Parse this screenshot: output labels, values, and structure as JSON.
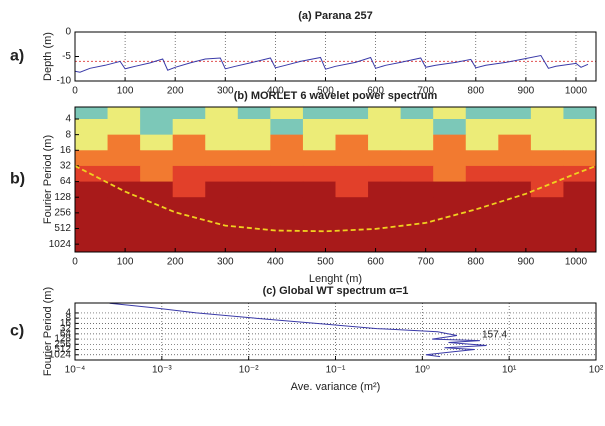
{
  "chart_data": [
    {
      "type": "line",
      "panel_label": "a)",
      "title": "(a) Parana 257",
      "ylabel": "Depth (m)",
      "xlim": [
        0,
        1040
      ],
      "xticks": [
        0,
        100,
        200,
        300,
        400,
        500,
        600,
        700,
        800,
        900,
        1000
      ],
      "ylim": [
        -10,
        0
      ],
      "yticks": [
        -10,
        -5,
        0
      ],
      "grid": "x",
      "reference_line": {
        "value": -6,
        "color": "#e05050"
      },
      "series": [
        {
          "color": "#3a3aa8",
          "x": [
            0,
            10,
            30,
            60,
            90,
            100,
            120,
            150,
            175,
            185,
            200,
            230,
            260,
            290,
            300,
            320,
            350,
            390,
            400,
            420,
            450,
            490,
            500,
            520,
            560,
            590,
            600,
            620,
            650,
            690,
            700,
            720,
            760,
            790,
            800,
            820,
            860,
            900,
            930,
            945,
            960,
            1000,
            1010,
            1024
          ],
          "values": [
            -8,
            -8.2,
            -7.4,
            -6.8,
            -6,
            -7.5,
            -7,
            -6.3,
            -5.5,
            -7.8,
            -7.2,
            -6.3,
            -5.5,
            -5.3,
            -7.5,
            -7,
            -6.3,
            -5.3,
            -7.3,
            -6.8,
            -6,
            -5.2,
            -7.6,
            -7,
            -6.2,
            -5.2,
            -7.4,
            -6.8,
            -6.2,
            -5.3,
            -7.2,
            -6.8,
            -6.2,
            -5.6,
            -7.3,
            -6.8,
            -6.2,
            -5.4,
            -4.8,
            -7.4,
            -7,
            -6.4,
            -7.2,
            -6.6
          ]
        }
      ]
    },
    {
      "type": "heatmap",
      "panel_label": "b)",
      "title": "(b) MORLET 6 wavelet power spectrum",
      "xlabel": "Lenght (m)",
      "ylabel": "Fourier Period (m)",
      "xlim": [
        0,
        1040
      ],
      "xticks": [
        0,
        100,
        200,
        300,
        400,
        500,
        600,
        700,
        800,
        900,
        1000
      ],
      "yscale": "log2",
      "ylim": [
        2.35,
        1450
      ],
      "yticks": [
        4,
        8,
        16,
        32,
        64,
        128,
        256,
        512,
        1024
      ],
      "colormap": [
        "#7cc8b8",
        "#ecec78",
        "#f27a30",
        "#e2402a",
        "#a81a1a"
      ],
      "z_period_edges": [
        2.35,
        4,
        8,
        16,
        32,
        64,
        128,
        256,
        1450
      ],
      "z": [
        [
          0,
          1,
          0,
          0,
          1,
          0,
          1,
          0,
          0,
          1,
          0,
          1,
          0,
          0,
          1,
          0
        ],
        [
          1,
          1,
          0,
          1,
          1,
          1,
          0,
          1,
          1,
          1,
          1,
          0,
          1,
          1,
          1,
          1
        ],
        [
          1,
          2,
          1,
          2,
          1,
          1,
          2,
          1,
          2,
          1,
          1,
          2,
          1,
          2,
          1,
          1
        ],
        [
          2,
          2,
          2,
          2,
          2,
          2,
          2,
          2,
          2,
          2,
          2,
          2,
          2,
          2,
          2,
          2
        ],
        [
          3,
          3,
          2,
          3,
          3,
          3,
          3,
          3,
          3,
          3,
          3,
          2,
          3,
          3,
          3,
          3
        ],
        [
          4,
          4,
          4,
          3,
          4,
          4,
          4,
          4,
          3,
          4,
          4,
          4,
          4,
          4,
          3,
          4
        ],
        [
          4,
          4,
          4,
          4,
          4,
          4,
          4,
          4,
          4,
          4,
          4,
          4,
          4,
          4,
          4,
          4
        ],
        [
          4,
          4,
          4,
          4,
          4,
          4,
          4,
          4,
          4,
          4,
          4,
          4,
          4,
          4,
          4,
          4
        ]
      ],
      "coi": {
        "color": "#f0d020",
        "x": [
          0,
          100,
          200,
          300,
          400,
          500,
          600,
          700,
          800,
          900,
          1000,
          1040
        ],
        "values": [
          32,
          100,
          250,
          450,
          560,
          580,
          520,
          400,
          220,
          110,
          45,
          32
        ]
      }
    },
    {
      "type": "line",
      "panel_label": "c)",
      "title": "(c) Global WT spectrum α=1",
      "xlabel": "Ave. variance (m²)",
      "ylabel": "Fourier Period (m)",
      "xscale": "log",
      "xlim": [
        0.0001,
        100
      ],
      "xticks": [
        {
          "value": 0.0001,
          "label": "10⁻⁴"
        },
        {
          "value": 0.001,
          "label": "10⁻³"
        },
        {
          "value": 0.01,
          "label": "10⁻²"
        },
        {
          "value": 0.1,
          "label": "10⁻¹"
        },
        {
          "value": 1,
          "label": "10⁰"
        },
        {
          "value": 10,
          "label": "10¹"
        },
        {
          "value": 100,
          "label": "10²"
        }
      ],
      "yscale": "log2",
      "ylim": [
        1.07,
        2048
      ],
      "yticks": [
        4,
        8,
        16,
        32,
        64,
        128,
        256,
        512,
        1024
      ],
      "grid": "xy",
      "annotation": "157.4",
      "series": [
        {
          "color": "#3a3aa8",
          "x": [
            0.00025,
            0.0008,
            0.0025,
            0.012,
            0.06,
            0.3,
            1.5,
            2.5,
            1.3,
            4.6,
            2,
            5.5,
            1.8,
            4,
            2.2,
            1.1,
            1.6
          ],
          "values": [
            1.1,
            2,
            4,
            8,
            16,
            32,
            48,
            80,
            128,
            157,
            200,
            300,
            400,
            512,
            700,
            1024,
            1300
          ]
        }
      ]
    }
  ]
}
